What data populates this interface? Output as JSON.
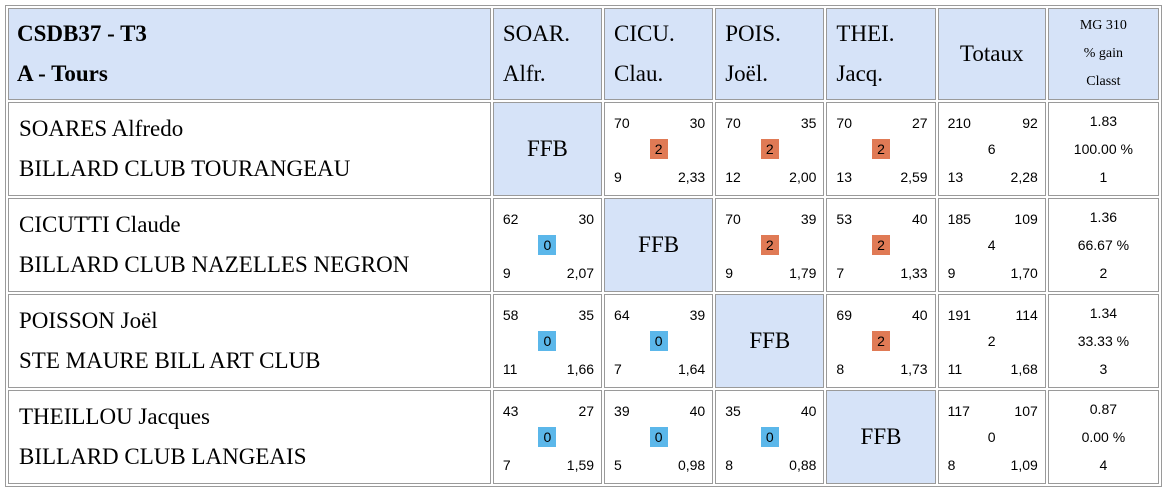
{
  "header": {
    "title_line1": "CSDB37 - T3",
    "title_line2": "A - Tours",
    "columns": [
      {
        "short": "SOAR.",
        "first": "Alfr."
      },
      {
        "short": "CICU.",
        "first": "Clau."
      },
      {
        "short": "POIS.",
        "first": "Joël."
      },
      {
        "short": "THEI.",
        "first": "Jacq."
      }
    ],
    "totals_label": "Totaux",
    "mg_line1": "MG 310",
    "mg_line2": "% gain",
    "mg_line3": "Classt"
  },
  "colors": {
    "header_bg": "#d6e3f8",
    "win_badge": "#e07a55",
    "loss_badge": "#5bb7ea",
    "border": "#9a9a9a"
  },
  "rows": [
    {
      "name": "SOARES Alfredo",
      "club": "BILLARD CLUB TOURANGEAU",
      "cells": [
        {
          "self": "FFB"
        },
        {
          "tl": "70",
          "tr": "30",
          "pts": "2",
          "bl": "9",
          "br": "2,33"
        },
        {
          "tl": "70",
          "tr": "35",
          "pts": "2",
          "bl": "12",
          "br": "2,00"
        },
        {
          "tl": "70",
          "tr": "27",
          "pts": "2",
          "bl": "13",
          "br": "2,59"
        }
      ],
      "totals": {
        "tl": "210",
        "tr": "92",
        "mid": "6",
        "bl": "13",
        "br": "2,28"
      },
      "stats": {
        "mg": "1.83",
        "pct": "100.00 %",
        "rank": "1"
      }
    },
    {
      "name": "CICUTTI Claude",
      "club": "BILLARD CLUB NAZELLES NEGRON",
      "cells": [
        {
          "tl": "62",
          "tr": "30",
          "pts": "0",
          "bl": "9",
          "br": "2,07"
        },
        {
          "self": "FFB"
        },
        {
          "tl": "70",
          "tr": "39",
          "pts": "2",
          "bl": "9",
          "br": "1,79"
        },
        {
          "tl": "53",
          "tr": "40",
          "pts": "2",
          "bl": "7",
          "br": "1,33"
        }
      ],
      "totals": {
        "tl": "185",
        "tr": "109",
        "mid": "4",
        "bl": "9",
        "br": "1,70"
      },
      "stats": {
        "mg": "1.36",
        "pct": "66.67 %",
        "rank": "2"
      }
    },
    {
      "name": "POISSON Joël",
      "club": "STE MAURE BILL ART CLUB",
      "cells": [
        {
          "tl": "58",
          "tr": "35",
          "pts": "0",
          "bl": "11",
          "br": "1,66"
        },
        {
          "tl": "64",
          "tr": "39",
          "pts": "0",
          "bl": "7",
          "br": "1,64"
        },
        {
          "self": "FFB"
        },
        {
          "tl": "69",
          "tr": "40",
          "pts": "2",
          "bl": "8",
          "br": "1,73"
        }
      ],
      "totals": {
        "tl": "191",
        "tr": "114",
        "mid": "2",
        "bl": "11",
        "br": "1,68"
      },
      "stats": {
        "mg": "1.34",
        "pct": "33.33 %",
        "rank": "3"
      }
    },
    {
      "name": "THEILLOU Jacques",
      "club": "BILLARD CLUB LANGEAIS",
      "cells": [
        {
          "tl": "43",
          "tr": "27",
          "pts": "0",
          "bl": "7",
          "br": "1,59"
        },
        {
          "tl": "39",
          "tr": "40",
          "pts": "0",
          "bl": "5",
          "br": "0,98"
        },
        {
          "tl": "35",
          "tr": "40",
          "pts": "0",
          "bl": "8",
          "br": "0,88"
        },
        {
          "self": "FFB"
        }
      ],
      "totals": {
        "tl": "117",
        "tr": "107",
        "mid": "0",
        "bl": "8",
        "br": "1,09"
      },
      "stats": {
        "mg": "0.87",
        "pct": "0.00 %",
        "rank": "4"
      }
    }
  ]
}
